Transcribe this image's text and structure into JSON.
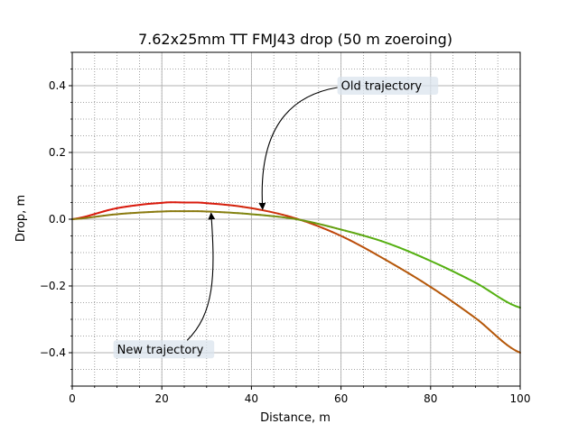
{
  "chart_data": {
    "type": "line",
    "title": "7.62x25mm TT FMJ43 drop (50 m zoeroing)",
    "xlabel": "Distance, m",
    "ylabel": "Drop, m",
    "xlim": [
      0,
      100
    ],
    "ylim": [
      -0.5,
      0.5
    ],
    "x_ticks": [
      0,
      20,
      40,
      60,
      80,
      100
    ],
    "y_ticks": [
      -0.4,
      -0.2,
      0.0,
      0.2,
      0.4
    ],
    "x_tick_labels": [
      "0",
      "20",
      "40",
      "60",
      "80",
      "100"
    ],
    "y_tick_labels": [
      "−0.4",
      "−0.2",
      "0.0",
      "0.2",
      "0.4"
    ],
    "grid": true,
    "minor_grid": true,
    "series": [
      {
        "color": "#d91a0d",
        "color_after_crossing": "#b5580a",
        "x": [
          0,
          10,
          20,
          25,
          30,
          40,
          50,
          60,
          70,
          80,
          90,
          100
        ],
        "y": [
          0.0,
          0.033,
          0.049,
          0.05,
          0.048,
          0.033,
          0.002,
          -0.05,
          -0.122,
          -0.203,
          -0.296,
          -0.4
        ]
      },
      {
        "color": "#8a7a10",
        "color_after_crossing": "#55b012",
        "x": [
          0,
          10,
          20,
          25,
          30,
          40,
          50,
          60,
          70,
          80,
          90,
          100
        ],
        "y": [
          0.0,
          0.015,
          0.023,
          0.024,
          0.023,
          0.015,
          0.0,
          -0.031,
          -0.07,
          -0.125,
          -0.19,
          -0.265
        ]
      }
    ],
    "annotations": [
      {
        "text": "Old trajectory",
        "text_x": 60,
        "text_y": 0.4,
        "arrow_x": 42.5,
        "arrow_y": 0.03
      },
      {
        "text": "New trajectory",
        "text_x": 10,
        "text_y": -0.39,
        "arrow_x": 31,
        "arrow_y": 0.018
      }
    ]
  }
}
